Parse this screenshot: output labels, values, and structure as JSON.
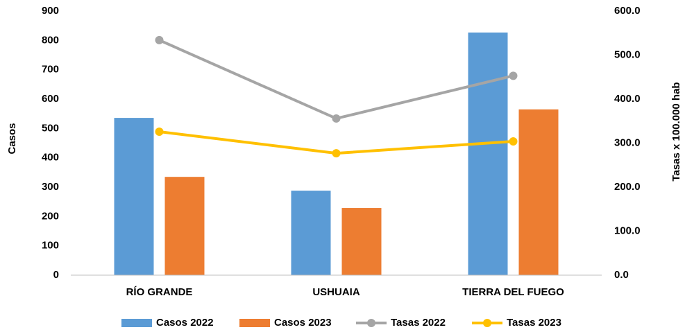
{
  "chart_data": {
    "type": "bar_line",
    "categories": [
      "RÍO GRANDE",
      "USHUAIA",
      "TIERRA DEL FUEGO"
    ],
    "series": [
      {
        "name": "Casos 2022",
        "color": "#5b9bd5",
        "type": "bar",
        "values": [
          536,
          288,
          827
        ]
      },
      {
        "name": "Casos 2023",
        "color": "#ed7d31",
        "type": "bar",
        "values": [
          335,
          229,
          565
        ]
      },
      {
        "name": "Tasas 2022",
        "color": "#a5a5a5",
        "type": "line",
        "axis": "y2",
        "values": [
          534,
          356,
          453
        ]
      },
      {
        "name": "Tasas 2023",
        "color": "#ffc000",
        "type": "line",
        "axis": "y2",
        "values": [
          326,
          277,
          304
        ]
      }
    ],
    "ylabel": "Casos",
    "y2label": "Tasas x 100.000 hab",
    "ylim": [
      0,
      900
    ],
    "yticks": [
      0,
      100,
      200,
      300,
      400,
      500,
      600,
      700,
      800,
      900
    ],
    "y2lim": [
      0,
      600
    ],
    "y2ticks": [
      {
        "value": 0,
        "label": "0.0"
      },
      {
        "value": 100,
        "label": "100.0"
      },
      {
        "value": 200,
        "label": "200.0"
      },
      {
        "value": 300,
        "label": "300.0"
      },
      {
        "value": 400,
        "label": "400.0"
      },
      {
        "value": 500,
        "label": "500.0"
      },
      {
        "value": 600,
        "label": "600.0"
      }
    ],
    "grid": false,
    "legend": "bottom"
  }
}
